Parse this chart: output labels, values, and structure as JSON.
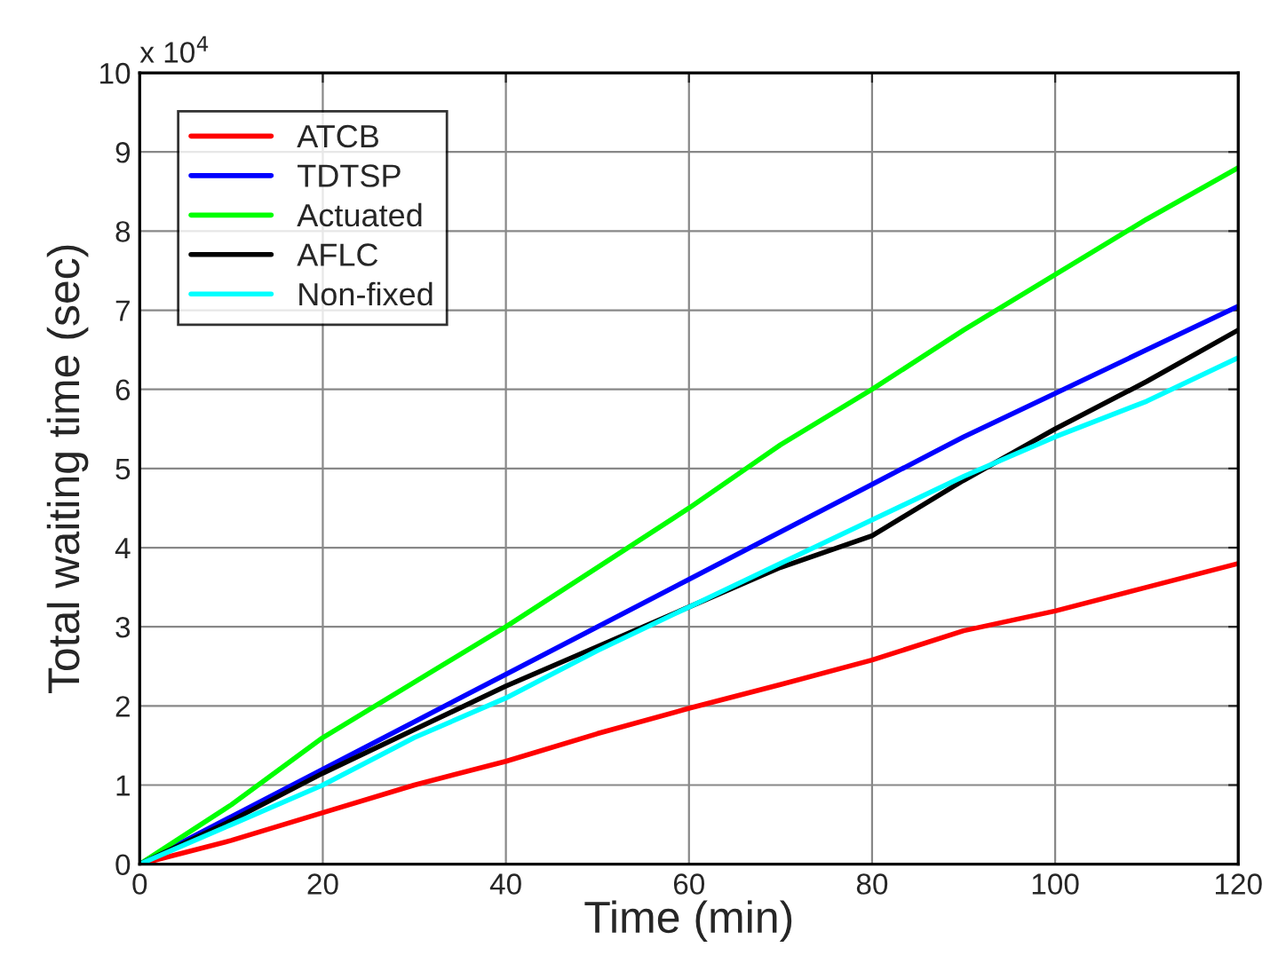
{
  "chart_data": {
    "type": "line",
    "xlabel": "Time (min)",
    "ylabel": "Total waiting time (sec)",
    "x": [
      0,
      10,
      20,
      30,
      40,
      50,
      60,
      70,
      80,
      90,
      100,
      110,
      120
    ],
    "series": [
      {
        "name": "ATCB",
        "color": "#ff0000",
        "values": [
          0,
          0.3,
          0.65,
          1.0,
          1.3,
          1.65,
          1.97,
          2.27,
          2.58,
          2.95,
          3.2,
          3.5,
          3.8
        ]
      },
      {
        "name": "TDTSP",
        "color": "#0000ff",
        "values": [
          0,
          0.6,
          1.2,
          1.8,
          2.4,
          3.0,
          3.6,
          4.2,
          4.8,
          5.4,
          5.95,
          6.5,
          7.05
        ]
      },
      {
        "name": "Actuated",
        "color": "#00ff00",
        "values": [
          0,
          0.75,
          1.6,
          2.3,
          3.0,
          3.75,
          4.5,
          5.3,
          6.0,
          6.75,
          7.45,
          8.15,
          8.8
        ]
      },
      {
        "name": "AFLC",
        "color": "#000000",
        "values": [
          0,
          0.55,
          1.15,
          1.7,
          2.25,
          2.75,
          3.25,
          3.75,
          4.15,
          4.85,
          5.5,
          6.1,
          6.75
        ]
      },
      {
        "name": "Non-fixed",
        "color": "#00ffff",
        "values": [
          0,
          0.5,
          1.0,
          1.6,
          2.1,
          2.7,
          3.25,
          3.8,
          4.35,
          4.9,
          5.4,
          5.85,
          6.4
        ]
      }
    ],
    "xlim": [
      0,
      120
    ],
    "xticks": [
      0,
      20,
      40,
      60,
      80,
      100,
      120
    ],
    "ylim": [
      0,
      10
    ],
    "yticks": [
      0,
      1,
      2,
      3,
      4,
      5,
      6,
      7,
      8,
      9,
      10
    ],
    "annotations": [
      "x 10$^{4}$"
    ],
    "grid": true,
    "legend": "top left",
    "line_style": "solid",
    "marker": "none"
  }
}
